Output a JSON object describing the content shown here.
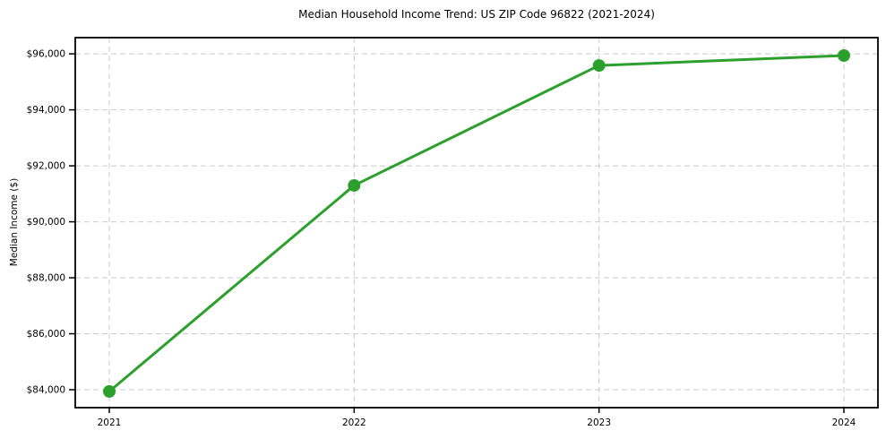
{
  "chart_data": {
    "type": "line",
    "title": "Median Household Income Trend: US ZIP Code 96822 (2021-2024)",
    "xlabel": "",
    "ylabel": "Median Income ($)",
    "categories": [
      "2021",
      "2022",
      "2023",
      "2024"
    ],
    "series": [
      {
        "name": "Median Household Income",
        "values": [
          83940,
          91300,
          95585,
          95940
        ],
        "color": "#2ca02c",
        "marker": "circle"
      }
    ],
    "yticks": [
      84000,
      86000,
      88000,
      90000,
      92000,
      94000,
      96000
    ],
    "ytick_labels": [
      "$84,000",
      "$86,000",
      "$88,000",
      "$90,000",
      "$92,000",
      "$94,000",
      "$96,000"
    ],
    "ylim": [
      83360,
      96580
    ],
    "grid": true,
    "grid_style": "dashed",
    "grid_color": "#cbcbcb",
    "axis_color": "#000000",
    "background_color": "#ffffff",
    "legend": "none"
  }
}
